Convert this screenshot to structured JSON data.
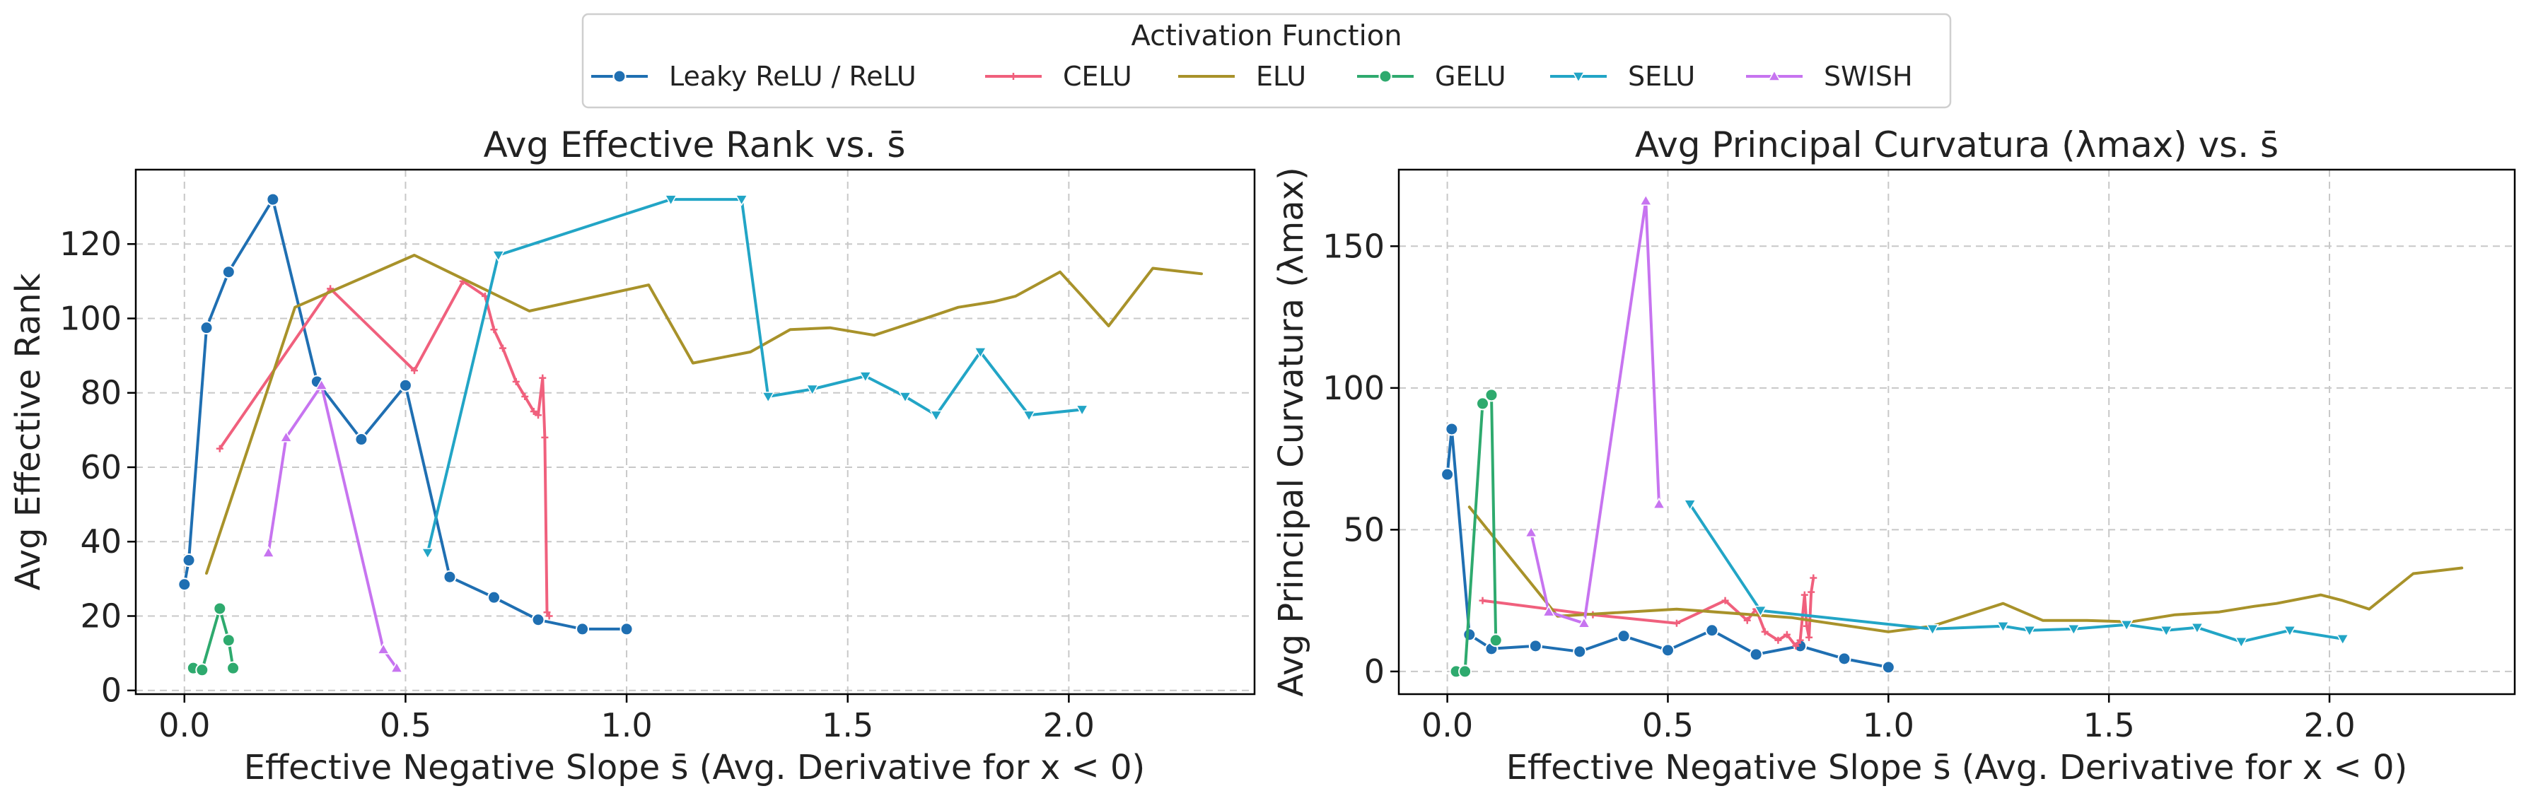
{
  "legend": {
    "title": "Activation Function"
  },
  "series_styles": [
    {
      "name": "Leaky ReLU / ReLU",
      "color": "#1f6fb2",
      "marker": "circle"
    },
    {
      "name": "CELU",
      "color": "#f0607d",
      "marker": "plus"
    },
    {
      "name": "ELU",
      "color": "#a8922a",
      "marker": "none"
    },
    {
      "name": "GELU",
      "color": "#2eaa6e",
      "marker": "circle"
    },
    {
      "name": "SELU",
      "color": "#22a5c6",
      "marker": "triangle-down"
    },
    {
      "name": "SWISH",
      "color": "#c774f0",
      "marker": "triangle-up"
    }
  ],
  "chart_data": [
    {
      "type": "line",
      "title": "Avg Effective Rank vs. s̄",
      "xlabel": "Effective Negative Slope s̄ (Avg. Derivative for x < 0)",
      "ylabel": "Avg Effective Rank",
      "xlim": [
        -0.11,
        2.42
      ],
      "ylim": [
        -1,
        140
      ],
      "xticks": [
        0.0,
        0.5,
        1.0,
        1.5,
        2.0
      ],
      "xtick_labels": [
        "0.0",
        "0.5",
        "1.0",
        "1.5",
        "2.0"
      ],
      "yticks": [
        0,
        20,
        40,
        60,
        80,
        100,
        120
      ],
      "ytick_labels": [
        "0",
        "20",
        "40",
        "60",
        "80",
        "100",
        "120"
      ],
      "grid": true,
      "series": [
        {
          "name": "Leaky ReLU / ReLU",
          "x": [
            0.0,
            0.01,
            0.05,
            0.1,
            0.2,
            0.3,
            0.4,
            0.5,
            0.6,
            0.7,
            0.8,
            0.9,
            1.0
          ],
          "y": [
            28.5,
            35,
            97.5,
            112.5,
            132,
            83,
            67.5,
            82,
            30.5,
            25,
            19,
            16.5,
            16.5
          ]
        },
        {
          "name": "CELU",
          "x": [
            0.08,
            0.33,
            0.52,
            0.63,
            0.68,
            0.7,
            0.72,
            0.75,
            0.77,
            0.79,
            0.8,
            0.81,
            0.815,
            0.82,
            0.825
          ],
          "y": [
            65,
            108,
            86,
            110,
            106,
            97,
            92,
            83,
            79,
            75,
            74,
            84,
            68,
            21,
            20
          ]
        },
        {
          "name": "ELU",
          "x": [
            0.05,
            0.25,
            0.52,
            0.78,
            1.05,
            1.15,
            1.28,
            1.37,
            1.46,
            1.56,
            1.65,
            1.75,
            1.83,
            1.88,
            1.98,
            2.03,
            2.09,
            2.19,
            2.3
          ],
          "y": [
            31.5,
            103,
            117,
            102,
            109,
            88,
            91,
            97,
            97.5,
            95.5,
            99,
            103,
            104.5,
            106,
            112.5,
            106,
            98,
            113.5,
            112
          ]
        },
        {
          "name": "GELU",
          "x": [
            0.02,
            0.04,
            0.08,
            0.1,
            0.11
          ],
          "y": [
            6,
            5.5,
            22,
            13.5,
            6
          ]
        },
        {
          "name": "SELU",
          "x": [
            0.55,
            0.71,
            1.1,
            1.26,
            1.32,
            1.42,
            1.54,
            1.63,
            1.7,
            1.8,
            1.91,
            2.03
          ],
          "y": [
            37,
            117,
            132,
            132,
            79,
            81,
            84.5,
            79,
            74,
            91,
            74,
            75.5
          ]
        },
        {
          "name": "SWISH",
          "x": [
            0.19,
            0.23,
            0.31,
            0.45,
            0.48
          ],
          "y": [
            37,
            68,
            82,
            11,
            6
          ]
        }
      ]
    },
    {
      "type": "line",
      "title": "Avg Principal Curvatura (λmax) vs. s̄",
      "xlabel": "Effective Negative Slope s̄ (Avg. Derivative for x < 0)",
      "ylabel": "Avg Principal Curvatura (λmax)",
      "xlim": [
        -0.11,
        2.42
      ],
      "ylim": [
        -8,
        177
      ],
      "xticks": [
        0.0,
        0.5,
        1.0,
        1.5,
        2.0
      ],
      "xtick_labels": [
        "0.0",
        "0.5",
        "1.0",
        "1.5",
        "2.0"
      ],
      "yticks": [
        0,
        50,
        100,
        150
      ],
      "ytick_labels": [
        "0",
        "50",
        "100",
        "150"
      ],
      "grid": true,
      "series": [
        {
          "name": "Leaky ReLU / ReLU",
          "x": [
            0.0,
            0.01,
            0.05,
            0.1,
            0.2,
            0.3,
            0.4,
            0.5,
            0.6,
            0.7,
            0.8,
            0.9,
            1.0
          ],
          "y": [
            69.5,
            85.5,
            13,
            8,
            9,
            7,
            12.5,
            7.5,
            14.5,
            6,
            9,
            4.5,
            1.5
          ]
        },
        {
          "name": "CELU",
          "x": [
            0.08,
            0.33,
            0.52,
            0.63,
            0.68,
            0.7,
            0.72,
            0.75,
            0.77,
            0.79,
            0.8,
            0.81,
            0.815,
            0.82,
            0.825,
            0.83
          ],
          "y": [
            25,
            20,
            17,
            25,
            18,
            22,
            14,
            11,
            13,
            9,
            11,
            27,
            16,
            12,
            28,
            33
          ]
        },
        {
          "name": "ELU",
          "x": [
            0.05,
            0.25,
            0.52,
            0.78,
            1.0,
            1.1,
            1.26,
            1.35,
            1.45,
            1.55,
            1.65,
            1.75,
            1.83,
            1.88,
            1.98,
            2.03,
            2.09,
            2.19,
            2.3
          ],
          "y": [
            58,
            19.5,
            22,
            19,
            14,
            16,
            24,
            18,
            18,
            17.5,
            20,
            21,
            23,
            24,
            27,
            25,
            22,
            34.5,
            36.5
          ]
        },
        {
          "name": "GELU",
          "x": [
            0.02,
            0.04,
            0.08,
            0.1,
            0.11
          ],
          "y": [
            0,
            0,
            94.5,
            97.5,
            11
          ]
        },
        {
          "name": "SELU",
          "x": [
            0.55,
            0.71,
            1.1,
            1.26,
            1.32,
            1.42,
            1.54,
            1.63,
            1.7,
            1.8,
            1.91,
            2.03
          ],
          "y": [
            59,
            21.5,
            15,
            16,
            14.5,
            15,
            16.5,
            14.5,
            15.5,
            10.5,
            14.5,
            11.5
          ]
        },
        {
          "name": "SWISH",
          "x": [
            0.19,
            0.23,
            0.31,
            0.45,
            0.48
          ],
          "y": [
            49,
            21,
            17,
            166,
            59
          ]
        }
      ]
    }
  ]
}
